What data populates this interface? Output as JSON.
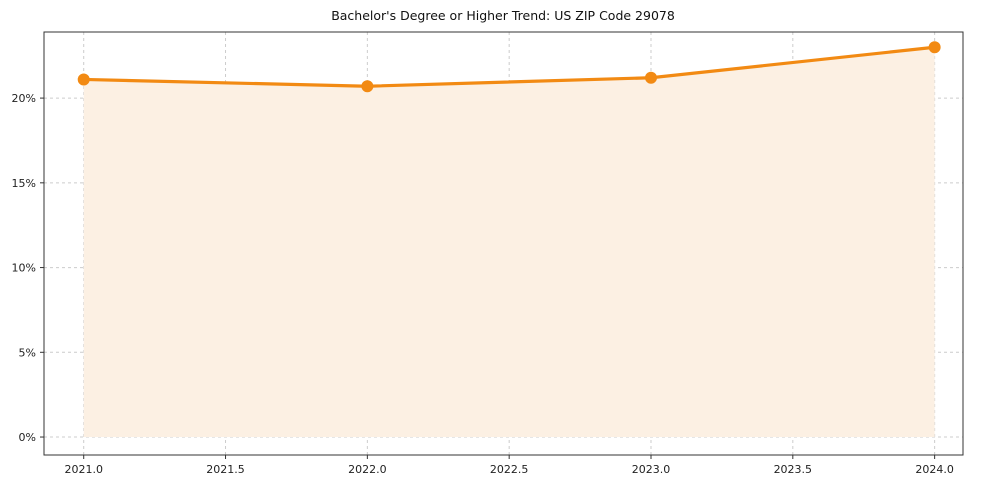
{
  "chart_data": {
    "type": "line",
    "title": "Bachelor's Degree or Higher Trend: US ZIP Code 29078",
    "x": [
      2021,
      2022,
      2023,
      2024
    ],
    "values": [
      21.1,
      20.7,
      21.2,
      23.0
    ],
    "xlabel": "",
    "ylabel": "",
    "xticks": [
      2021.0,
      2021.5,
      2022.0,
      2022.5,
      2023.0,
      2023.5,
      2024.0
    ],
    "xtick_labels": [
      "2021.0",
      "2021.5",
      "2022.0",
      "2022.5",
      "2023.0",
      "2023.5",
      "2024.0"
    ],
    "yticks": [
      0,
      5,
      10,
      15,
      20
    ],
    "ytick_labels": [
      "0%",
      "5%",
      "10%",
      "15%",
      "20%"
    ],
    "xlim": [
      2020.86,
      2024.1
    ],
    "ylim": [
      -1.06,
      23.9
    ],
    "grid": true,
    "legend": "none",
    "area_baseline": 0,
    "colors": {
      "line": "#f28a13",
      "marker": "#f28a13",
      "fill": "#fcf0e3",
      "grid": "#cccccc",
      "axis": "#333333",
      "text": "#222222"
    }
  }
}
